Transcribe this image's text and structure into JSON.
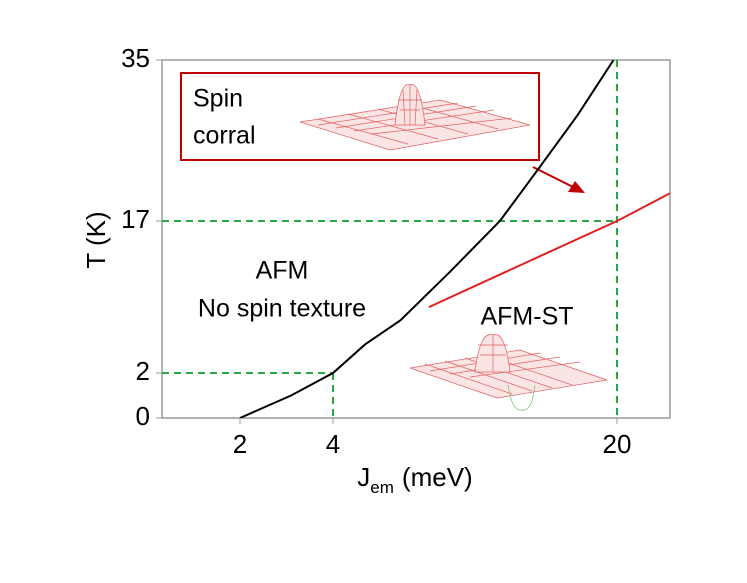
{
  "chart_data": {
    "type": "line",
    "y_label": "T (K)",
    "x_label": {
      "symbol": "J",
      "subscript": "em",
      "unit": "(meV)"
    },
    "xlim": [
      0.3,
      23
    ],
    "xticks": [
      2,
      4,
      20
    ],
    "ylim": [
      0,
      35
    ],
    "yticks": [
      0,
      2,
      17,
      35
    ],
    "series": [
      {
        "color": "#000000",
        "x": [
          2,
          3.1,
          4,
          5.8,
          7.8,
          10.6,
          13.4,
          15.6,
          17.8,
          19.8
        ],
        "values": [
          0,
          1.0,
          2,
          4.8,
          7.2,
          12.0,
          17,
          22.9,
          28.9,
          35
        ]
      },
      {
        "color": "#e02020",
        "x": [
          9.4,
          14.5,
          20,
          23
        ],
        "values": [
          8.5,
          12.6,
          17,
          20.1
        ]
      }
    ],
    "guides": {
      "color": "#22aa44",
      "points": [
        {
          "x": 4,
          "y": 2
        },
        {
          "x": 20,
          "y": 17
        }
      ]
    },
    "annotations": {
      "box_line1": "Spin",
      "box_line2": "corral",
      "afm": "AFM",
      "afm_sub": "No spin texture",
      "afm_st": "AFM-ST"
    }
  }
}
